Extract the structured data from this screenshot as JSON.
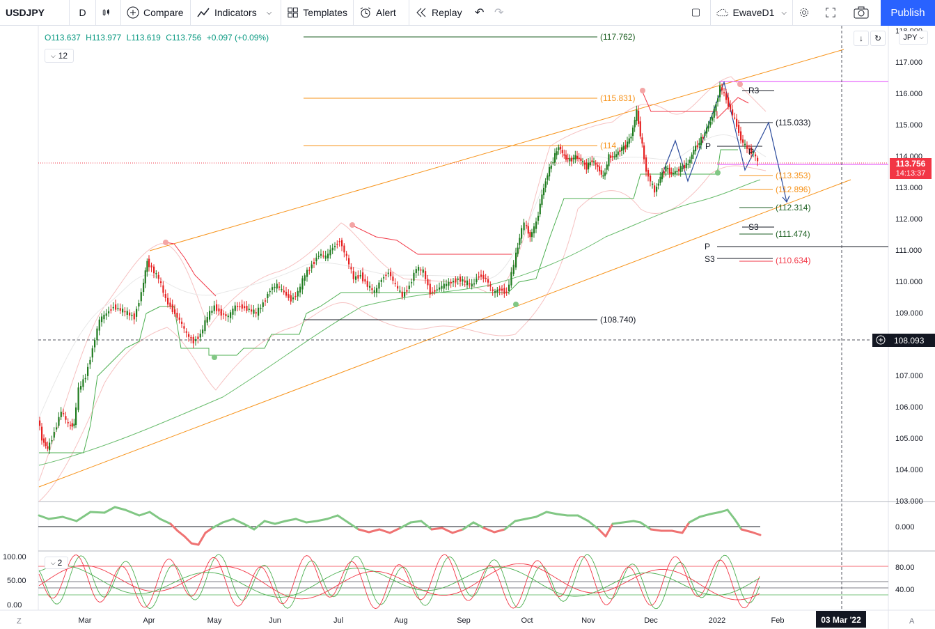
{
  "toolbar": {
    "symbol": "USDJPY",
    "interval": "D",
    "compare": "Compare",
    "indicators": "Indicators",
    "templates": "Templates",
    "alert": "Alert",
    "replay": "Replay",
    "layout_name": "EwaveD1",
    "publish": "Publish"
  },
  "legend": {
    "open": "O113.637",
    "high": "H113.977",
    "low": "L113.619",
    "close": "C113.756",
    "change": "+0.097 (+0.09%)",
    "collapse_count": "12",
    "indicator_count": "2"
  },
  "currency": "JPY",
  "price_axis": [
    "118.000",
    "117.000",
    "116.000",
    "115.000",
    "114.000",
    "113.000",
    "112.000",
    "111.000",
    "110.000",
    "109.000",
    "108.000",
    "107.000",
    "106.000",
    "105.000",
    "104.000",
    "103.000"
  ],
  "last_price": {
    "value": "113.756",
    "countdown": "14:13:37",
    "color": "#f23645"
  },
  "crosshair_price": "108.093",
  "osc_axis": "0.000",
  "stoch_axis_left": [
    "100.00",
    "50.00",
    "0.00"
  ],
  "stoch_axis_right": [
    "80.00",
    "40.00"
  ],
  "time_axis": [
    "Mar",
    "Apr",
    "May",
    "Jun",
    "Jul",
    "Aug",
    "Sep",
    "Oct",
    "Nov",
    "Dec",
    "2022",
    "Feb"
  ],
  "crosshair_date": "03 Mar '22",
  "level_labels": {
    "l117762": "(117.762)",
    "l115831": "(115.831)",
    "l114": "(114",
    "l108740": "(108.740)",
    "l115033": "(115.033)",
    "l113353": "(113.353)",
    "l112896": "(112.896)",
    "l112314": "(112.314)",
    "l111474": "(111.474)",
    "l110634": "(110.634)",
    "r3": "R3",
    "p1": "P",
    "p2": "P",
    "s3a": "S3",
    "p3": "P",
    "s3b": "S3"
  },
  "colors": {
    "up": "#089981",
    "down": "#f23645",
    "candle_up": "#1e7b1e",
    "candle_down": "#e62020",
    "orange": "#f7931a",
    "accent": "#2962ff"
  },
  "axis_letters": {
    "left": "Z",
    "right": "A"
  }
}
